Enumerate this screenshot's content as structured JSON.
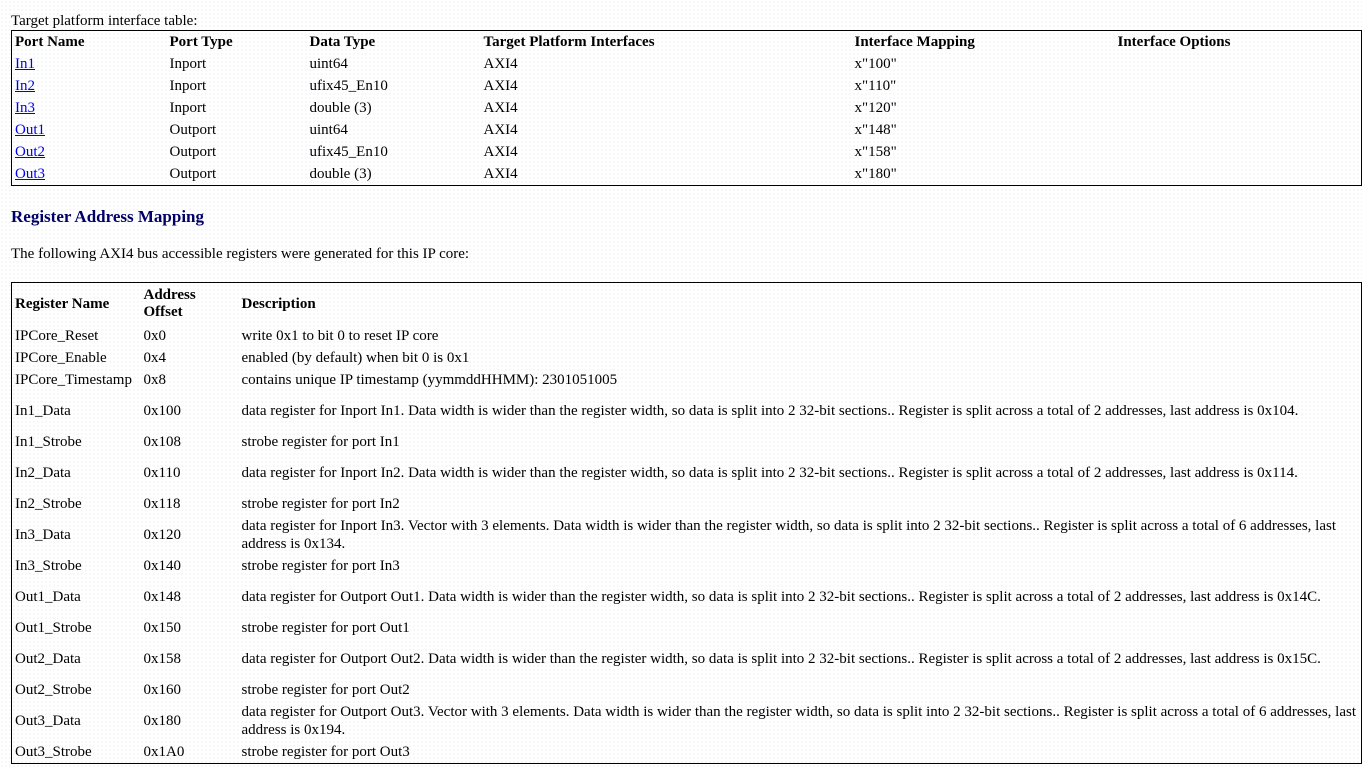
{
  "interface_table": {
    "caption": "Target platform interface table:",
    "headers": [
      "Port Name",
      "Port Type",
      "Data Type",
      "Target Platform Interfaces",
      "Interface Mapping",
      "Interface Options"
    ],
    "rows": [
      [
        "In1",
        "Inport",
        "uint64",
        "AXI4",
        "x\"100\"",
        ""
      ],
      [
        "In2",
        "Inport",
        "ufix45_En10",
        "AXI4",
        "x\"110\"",
        ""
      ],
      [
        "In3",
        "Inport",
        "double (3)",
        "AXI4",
        "x\"120\"",
        ""
      ],
      [
        "Out1",
        "Outport",
        "uint64",
        "AXI4",
        "x\"148\"",
        ""
      ],
      [
        "Out2",
        "Outport",
        "ufix45_En10",
        "AXI4",
        "x\"158\"",
        ""
      ],
      [
        "Out3",
        "Outport",
        "double (3)",
        "AXI4",
        "x\"180\"",
        ""
      ]
    ]
  },
  "register_section": {
    "heading": "Register Address Mapping",
    "intro": "The following AXI4 bus accessible registers were generated for this IP core:",
    "headers": [
      "Register Name",
      "Address Offset",
      "Description"
    ],
    "rows": [
      [
        "IPCore_Reset",
        "0x0",
        "write 0x1 to bit 0 to reset IP core"
      ],
      [
        "IPCore_Enable",
        "0x4",
        "enabled (by default) when bit 0 is 0x1"
      ],
      [
        "IPCore_Timestamp",
        "0x8",
        "contains unique IP timestamp (yymmddHHMM): 2301051005"
      ],
      [
        "In1_Data",
        "0x100",
        "data register for Inport In1. Data width is wider than the register width, so data is split into 2 32-bit sections.. Register is split across a total of 2 addresses, last address is 0x104."
      ],
      [
        "In1_Strobe",
        "0x108",
        "strobe register for port In1"
      ],
      [
        "In2_Data",
        "0x110",
        "data register for Inport In2. Data width is wider than the register width, so data is split into 2 32-bit sections.. Register is split across a total of 2 addresses, last address is 0x114."
      ],
      [
        "In2_Strobe",
        "0x118",
        "strobe register for port In2"
      ],
      [
        "In3_Data",
        "0x120",
        "data register for Inport In3. Vector with 3 elements. Data width is wider than the register width, so data is split into 2 32-bit sections.. Register is split across a total of 6 addresses, last address is 0x134."
      ],
      [
        "In3_Strobe",
        "0x140",
        "strobe register for port In3"
      ],
      [
        "Out1_Data",
        "0x148",
        "data register for Outport Out1. Data width is wider than the register width, so data is split into 2 32-bit sections.. Register is split across a total of 2 addresses, last address is 0x14C."
      ],
      [
        "Out1_Strobe",
        "0x150",
        "strobe register for port Out1"
      ],
      [
        "Out2_Data",
        "0x158",
        "data register for Outport Out2. Data width is wider than the register width, so data is split into 2 32-bit sections.. Register is split across a total of 2 addresses, last address is 0x15C."
      ],
      [
        "Out2_Strobe",
        "0x160",
        "strobe register for port Out2"
      ],
      [
        "Out3_Data",
        "0x180",
        "data register for Outport Out3. Vector with 3 elements. Data width is wider than the register width, so data is split into 2 32-bit sections.. Register is split across a total of 6 addresses, last address is 0x194."
      ],
      [
        "Out3_Strobe",
        "0x1A0",
        "strobe register for port Out3"
      ]
    ]
  },
  "colors": {
    "link": "#0000ee",
    "heading": "#000066"
  }
}
